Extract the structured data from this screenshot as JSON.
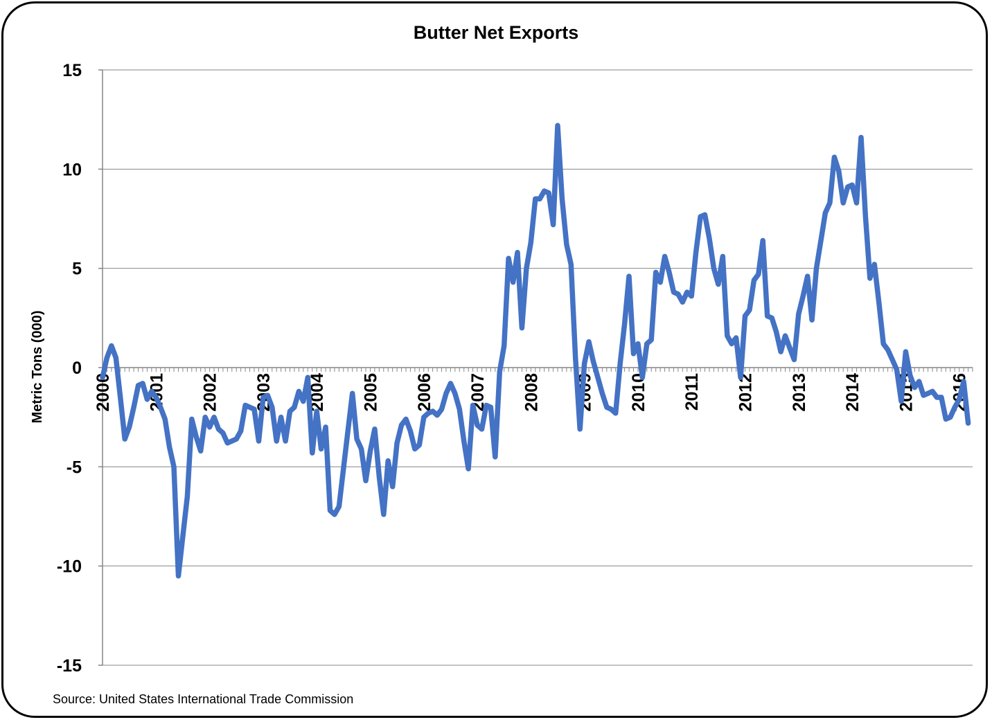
{
  "chart_data": {
    "type": "line",
    "title": "Butter Net Exports",
    "ylabel": "Metric Tons (000)",
    "xlabel": "",
    "source": "Source: United States International Trade Commission",
    "ylim": [
      -15,
      15
    ],
    "yticks": [
      15,
      10,
      5,
      0,
      -5,
      -10,
      -15
    ],
    "ytick_labels": [
      "15",
      "10",
      "5",
      "0",
      "-5",
      "-10",
      "-15"
    ],
    "xlim": [
      2000,
      2016.25
    ],
    "xtick_labels": [
      "2000",
      "2001",
      "2002",
      "2003",
      "2004",
      "2005",
      "2006",
      "2007",
      "2008",
      "2009",
      "2010",
      "2011",
      "2012",
      "2013",
      "2014",
      "2015",
      "2016"
    ],
    "grid": "horizontal",
    "legend": "none",
    "line_color": "#4472C4",
    "series": [
      {
        "x": [
          2000.0,
          2000.083,
          2000.167,
          2000.25,
          2000.333,
          2000.417,
          2000.5,
          2000.583,
          2000.667,
          2000.75,
          2000.833,
          2000.917,
          2001.0,
          2001.083,
          2001.167,
          2001.25,
          2001.333,
          2001.417,
          2001.5,
          2001.583,
          2001.667,
          2001.75,
          2001.833,
          2001.917,
          2002.0,
          2002.083,
          2002.167,
          2002.25,
          2002.333,
          2002.417,
          2002.5,
          2002.583,
          2002.667,
          2002.75,
          2002.833,
          2002.917,
          2003.0,
          2003.083,
          2003.167,
          2003.25,
          2003.333,
          2003.417,
          2003.5,
          2003.583,
          2003.667,
          2003.75,
          2003.833,
          2003.917,
          2004.0,
          2004.083,
          2004.167,
          2004.25,
          2004.333,
          2004.417,
          2004.5,
          2004.583,
          2004.667,
          2004.75,
          2004.833,
          2004.917,
          2005.0,
          2005.083,
          2005.167,
          2005.25,
          2005.333,
          2005.417,
          2005.5,
          2005.583,
          2005.667,
          2005.75,
          2005.833,
          2005.917,
          2006.0,
          2006.083,
          2006.167,
          2006.25,
          2006.333,
          2006.417,
          2006.5,
          2006.583,
          2006.667,
          2006.75,
          2006.833,
          2006.917,
          2007.0,
          2007.083,
          2007.167,
          2007.25,
          2007.333,
          2007.417,
          2007.5,
          2007.583,
          2007.667,
          2007.75,
          2007.833,
          2007.917,
          2008.0,
          2008.083,
          2008.167,
          2008.25,
          2008.333,
          2008.417,
          2008.5,
          2008.583,
          2008.667,
          2008.75,
          2008.833,
          2008.917,
          2009.0,
          2009.083,
          2009.167,
          2009.25,
          2009.333,
          2009.417,
          2009.5,
          2009.583,
          2009.667,
          2009.75,
          2009.833,
          2009.917,
          2010.0,
          2010.083,
          2010.167,
          2010.25,
          2010.333,
          2010.417,
          2010.5,
          2010.583,
          2010.667,
          2010.75,
          2010.833,
          2010.917,
          2011.0,
          2011.083,
          2011.167,
          2011.25,
          2011.333,
          2011.417,
          2011.5,
          2011.583,
          2011.667,
          2011.75,
          2011.833,
          2011.917,
          2012.0,
          2012.083,
          2012.167,
          2012.25,
          2012.333,
          2012.417,
          2012.5,
          2012.583,
          2012.667,
          2012.75,
          2012.833,
          2012.917,
          2013.0,
          2013.083,
          2013.167,
          2013.25,
          2013.333,
          2013.417,
          2013.5,
          2013.583,
          2013.667,
          2013.75,
          2013.833,
          2013.917,
          2014.0,
          2014.083,
          2014.167,
          2014.25,
          2014.333,
          2014.417,
          2014.5,
          2014.583,
          2014.667,
          2014.75,
          2014.833,
          2014.917,
          2015.0,
          2015.083,
          2015.167,
          2015.25,
          2015.333,
          2015.417,
          2015.5,
          2015.583,
          2015.667,
          2015.75,
          2015.833,
          2015.917,
          2016.0,
          2016.083,
          2016.167
        ],
        "y": [
          -0.5,
          0.5,
          1.1,
          0.5,
          -1.5,
          -3.6,
          -3.0,
          -2.0,
          -0.9,
          -0.8,
          -1.6,
          -1.2,
          -1.5,
          -2.0,
          -2.6,
          -4.0,
          -5.0,
          -10.5,
          -8.5,
          -6.5,
          -2.6,
          -3.5,
          -4.2,
          -2.5,
          -3.0,
          -2.5,
          -3.1,
          -3.3,
          -3.8,
          -3.7,
          -3.6,
          -3.2,
          -1.9,
          -2.0,
          -2.1,
          -3.7,
          -1.5,
          -1.4,
          -2.0,
          -3.7,
          -2.5,
          -3.7,
          -2.2,
          -2.0,
          -1.2,
          -1.7,
          -0.5,
          -4.3,
          -2.2,
          -4.1,
          -3.0,
          -7.2,
          -7.4,
          -7.0,
          -5.1,
          -3.2,
          -1.3,
          -3.6,
          -4.1,
          -5.7,
          -4.2,
          -3.1,
          -5.5,
          -7.4,
          -4.7,
          -6.0,
          -3.8,
          -2.9,
          -2.6,
          -3.2,
          -4.1,
          -3.9,
          -2.5,
          -2.3,
          -2.2,
          -2.4,
          -2.1,
          -1.3,
          -0.8,
          -1.3,
          -2.1,
          -3.7,
          -5.1,
          -1.9,
          -2.9,
          -3.1,
          -1.9,
          -2.0,
          -4.5,
          -0.2,
          1.1,
          5.5,
          4.3,
          5.8,
          2.0,
          5.0,
          6.3,
          8.5,
          8.5,
          8.9,
          8.8,
          7.2,
          12.2,
          8.5,
          6.2,
          5.2,
          0.5,
          -3.1,
          0.2,
          1.3,
          0.3,
          -0.5,
          -1.3,
          -2.0,
          -2.1,
          -2.3,
          0.2,
          2.2,
          4.6,
          0.7,
          1.2,
          -0.5,
          1.2,
          1.4,
          4.8,
          4.3,
          5.6,
          4.8,
          3.8,
          3.7,
          3.3,
          3.8,
          3.6,
          5.8,
          7.6,
          7.7,
          6.5,
          5.0,
          4.2,
          5.6,
          1.6,
          1.2,
          1.5,
          -0.5,
          2.6,
          2.9,
          4.4,
          4.7,
          6.4,
          2.6,
          2.5,
          1.8,
          0.8,
          1.6,
          1.0,
          0.4,
          2.7,
          3.6,
          4.6,
          2.4,
          5.0,
          6.4,
          7.8,
          8.3,
          10.6,
          9.9,
          8.3,
          9.1,
          9.2,
          8.3,
          11.6,
          7.6,
          4.5,
          5.2,
          3.3,
          1.2,
          0.9,
          0.4,
          -0.1,
          -1.7,
          0.8,
          -0.4,
          -1.0,
          -0.7,
          -1.4,
          -1.3,
          -1.2,
          -1.5,
          -1.5,
          -2.6,
          -2.5,
          -2.0,
          -1.6,
          -0.7,
          -2.8
        ]
      }
    ]
  }
}
